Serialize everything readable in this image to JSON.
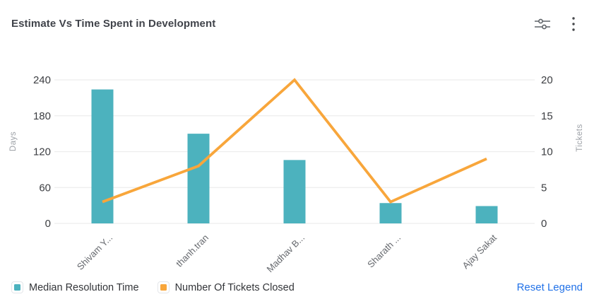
{
  "header": {
    "title": "Estimate Vs Time Spent in Development"
  },
  "chart_data": {
    "type": "combo",
    "categories": [
      "Shivam Y...",
      "thanh.tran",
      "Madhav B...",
      "Sharath ...",
      "Ajay Sakat"
    ],
    "series": [
      {
        "name": "Median Resolution Time",
        "type": "bar",
        "axis": "left",
        "color": "#4cb2be",
        "values": [
          224,
          150,
          106,
          34,
          29
        ]
      },
      {
        "name": "Number Of Tickets Closed",
        "type": "line",
        "axis": "right",
        "color": "#f8a63b",
        "values": [
          3,
          8,
          20,
          3,
          9
        ]
      }
    ],
    "left_axis": {
      "label": "Days",
      "ticks": [
        0,
        60,
        120,
        180,
        240
      ],
      "min": 0,
      "max": 240
    },
    "right_axis": {
      "label": "Tickets",
      "ticks": [
        0,
        5,
        10,
        15,
        20
      ],
      "min": 0,
      "max": 20
    },
    "grid": true,
    "legend_position": "bottom"
  },
  "legend": {
    "items": [
      {
        "label": "Median Resolution Time",
        "color": "#4cb2be"
      },
      {
        "label": "Number Of Tickets Closed",
        "color": "#f8a63b"
      }
    ],
    "reset_label": "Reset Legend"
  },
  "style": {
    "grid_color": "#ededed",
    "tick_color": "#3c3e42",
    "x_label_color": "#66696e",
    "axis_name_color": "#9ca0a6",
    "icon_color": "#5f6368",
    "link_color": "#2272e8"
  }
}
